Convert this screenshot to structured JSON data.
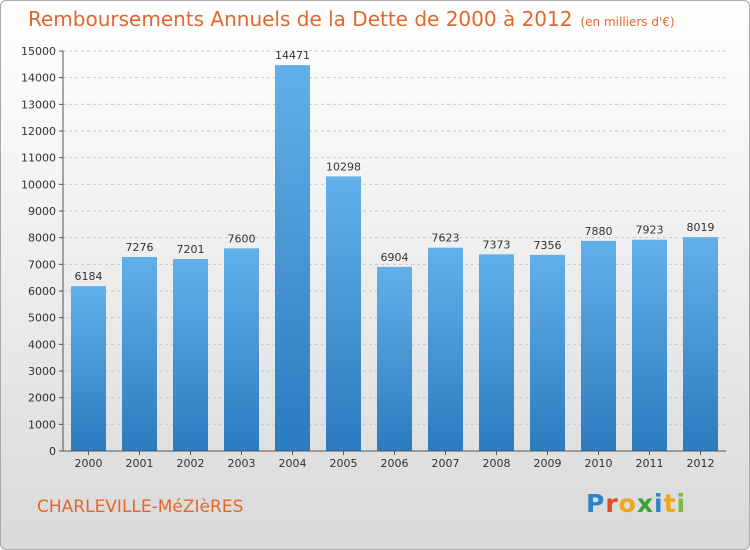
{
  "title": "Remboursements Annuels de la Dette de 2000 à 2012",
  "subtitle": "(en milliers d'€)",
  "city": "CHARLEVILLE-MéZIèRES",
  "logo": {
    "text": "Proxiti",
    "letters": [
      "P",
      "r",
      "o",
      "x",
      "i",
      "t",
      "i"
    ]
  },
  "colors": {
    "title": "#e2672c",
    "bar_top": "#62b0ea",
    "bar_bottom": "#2b7bbf",
    "grid": "#c8c8c8"
  },
  "chart_data": {
    "type": "bar",
    "categories": [
      "2000",
      "2001",
      "2002",
      "2003",
      "2004",
      "2005",
      "2006",
      "2007",
      "2008",
      "2009",
      "2010",
      "2011",
      "2012"
    ],
    "values": [
      6184,
      7276,
      7201,
      7600,
      14471,
      10298,
      6904,
      7623,
      7373,
      7356,
      7880,
      7923,
      8019
    ],
    "data_labels": [
      "6184",
      "7276",
      "7201",
      "7600",
      "14471",
      "10298",
      "6904",
      "7623",
      "7373",
      "7356",
      "7880",
      "7923",
      "8019"
    ],
    "yticks": [
      0,
      1000,
      2000,
      3000,
      4000,
      5000,
      6000,
      7000,
      8000,
      9000,
      10000,
      11000,
      12000,
      13000,
      14000,
      15000
    ],
    "ylim": [
      0,
      15000
    ],
    "grid": true
  }
}
